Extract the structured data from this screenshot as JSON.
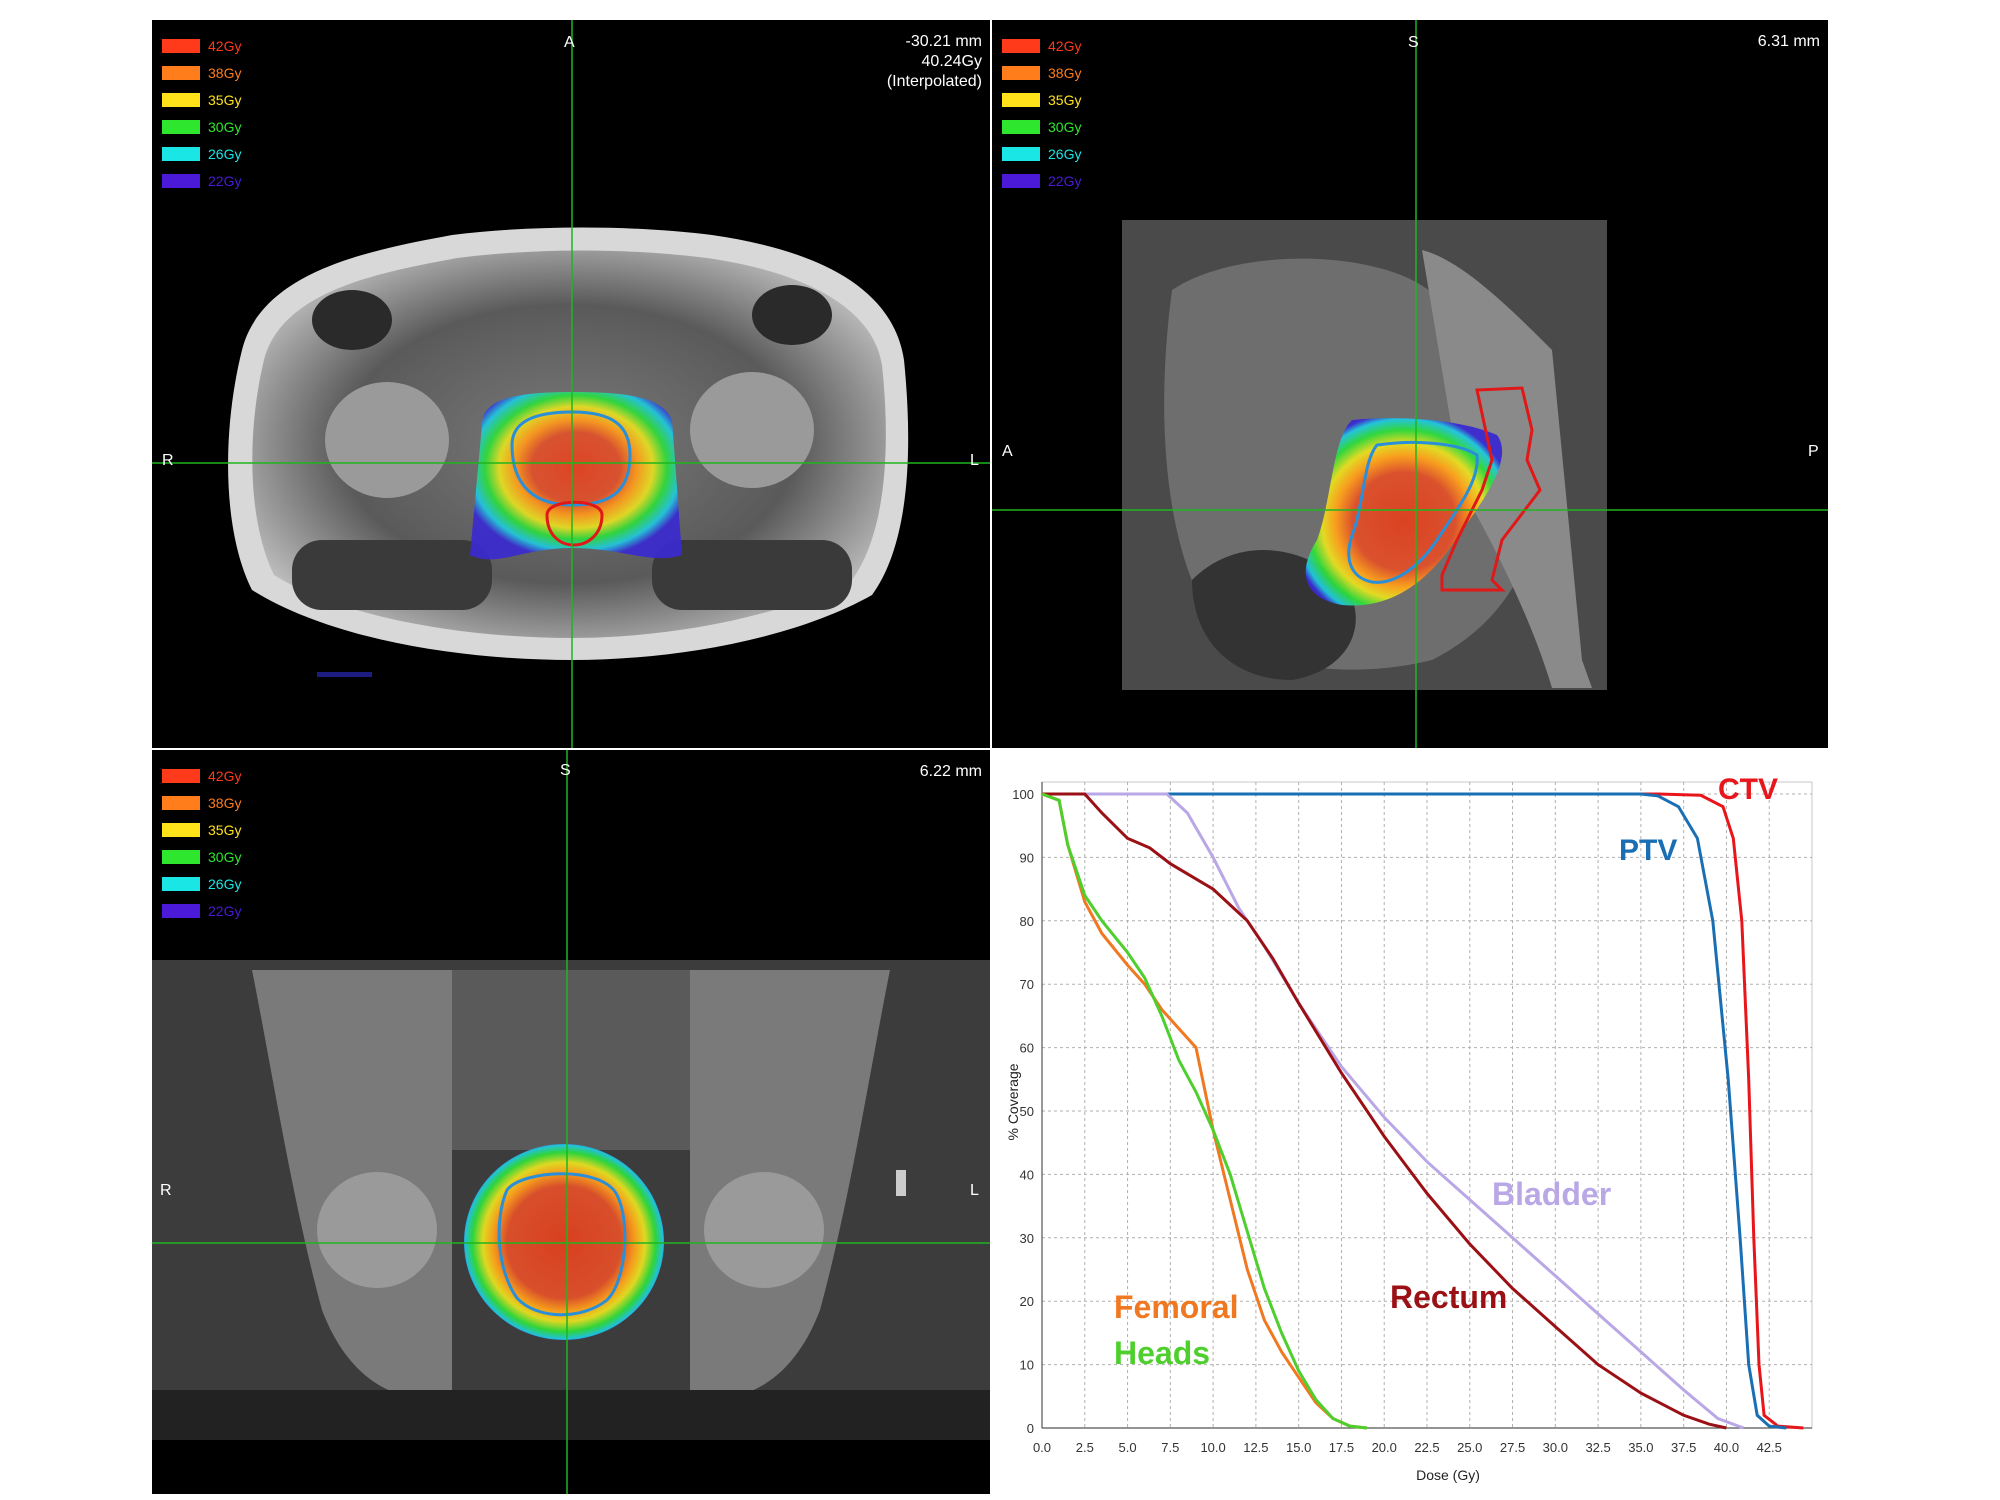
{
  "dose_legend": [
    {
      "label": "42Gy",
      "color": "#ff3a1a"
    },
    {
      "label": "38Gy",
      "color": "#ff7d1a"
    },
    {
      "label": "35Gy",
      "color": "#ffe21a"
    },
    {
      "label": "30Gy",
      "color": "#2ee62e"
    },
    {
      "label": "26Gy",
      "color": "#1ae6e6"
    },
    {
      "label": "22Gy",
      "color": "#4a1ad8"
    }
  ],
  "axial": {
    "orientation": {
      "top": "A",
      "left": "R",
      "right": "L"
    },
    "readout": {
      "position": "-30.21 mm",
      "dose": "40.24Gy",
      "note": "(Interpolated)"
    }
  },
  "sagittal": {
    "orientation": {
      "top": "S",
      "left": "A",
      "right": "P"
    },
    "readout": {
      "position": "6.31 mm"
    }
  },
  "coronal": {
    "orientation": {
      "top": "S",
      "left": "R",
      "right": "L"
    },
    "readout": {
      "position": "6.22 mm"
    }
  },
  "chart_data": {
    "type": "line",
    "xlabel": "Dose (Gy)",
    "ylabel": "% Coverage",
    "xlim": [
      0,
      45
    ],
    "ylim": [
      0,
      100
    ],
    "x_ticks": [
      "0.0",
      "2.5",
      "5.0",
      "7.5",
      "10.0",
      "12.5",
      "15.0",
      "17.5",
      "20.0",
      "22.5",
      "25.0",
      "27.5",
      "30.0",
      "32.5",
      "35.0",
      "37.5",
      "40.0",
      "42.5"
    ],
    "y_ticks": [
      "0",
      "10",
      "20",
      "30",
      "40",
      "50",
      "60",
      "70",
      "80",
      "90",
      "100"
    ],
    "grid": true,
    "series": [
      {
        "name": "CTV",
        "color": "#e8151b",
        "points": [
          [
            0,
            100
          ],
          [
            36,
            100
          ],
          [
            38.5,
            99.8
          ],
          [
            39.8,
            98
          ],
          [
            40.4,
            93
          ],
          [
            40.9,
            80
          ],
          [
            41.3,
            55
          ],
          [
            41.6,
            30
          ],
          [
            41.9,
            10
          ],
          [
            42.2,
            2
          ],
          [
            43,
            0.3
          ],
          [
            44.5,
            0
          ]
        ]
      },
      {
        "name": "PTV",
        "color": "#1a6fb4",
        "points": [
          [
            0,
            100
          ],
          [
            35,
            100
          ],
          [
            36,
            99.7
          ],
          [
            37.2,
            98
          ],
          [
            38.3,
            93
          ],
          [
            39.2,
            80
          ],
          [
            40.1,
            55
          ],
          [
            40.8,
            30
          ],
          [
            41.3,
            10
          ],
          [
            41.8,
            2
          ],
          [
            42.5,
            0.3
          ],
          [
            43.5,
            0
          ]
        ]
      },
      {
        "name": "Bladder",
        "color": "#b9a7e6",
        "points": [
          [
            0,
            100
          ],
          [
            7.3,
            100
          ],
          [
            8.5,
            97
          ],
          [
            10,
            90
          ],
          [
            11.5,
            82
          ],
          [
            13,
            76
          ],
          [
            15,
            67
          ],
          [
            17.5,
            57
          ],
          [
            20,
            49
          ],
          [
            22.5,
            42
          ],
          [
            25,
            36
          ],
          [
            27.5,
            30
          ],
          [
            30,
            24
          ],
          [
            32.5,
            18
          ],
          [
            35,
            12
          ],
          [
            37.5,
            6
          ],
          [
            39.5,
            1.5
          ],
          [
            41,
            0
          ]
        ]
      },
      {
        "name": "Rectum",
        "color": "#9b1014",
        "points": [
          [
            0,
            100
          ],
          [
            2.5,
            100
          ],
          [
            3.5,
            97
          ],
          [
            5,
            93
          ],
          [
            6.3,
            91.5
          ],
          [
            7.5,
            89
          ],
          [
            10,
            85
          ],
          [
            12,
            80
          ],
          [
            13.5,
            74
          ],
          [
            15,
            67
          ],
          [
            17.5,
            56
          ],
          [
            20,
            46
          ],
          [
            22.5,
            37
          ],
          [
            25,
            29
          ],
          [
            27.5,
            22
          ],
          [
            30,
            16
          ],
          [
            32.5,
            10
          ],
          [
            35,
            5.5
          ],
          [
            37.5,
            2
          ],
          [
            39,
            0.6
          ],
          [
            40,
            0
          ]
        ]
      },
      {
        "name": "Femoral",
        "color": "#f07820",
        "points": [
          [
            0,
            100
          ],
          [
            1,
            99
          ],
          [
            1.5,
            92
          ],
          [
            2.5,
            83
          ],
          [
            3.5,
            78
          ],
          [
            5,
            73
          ],
          [
            6,
            70
          ],
          [
            7,
            66
          ],
          [
            8,
            63
          ],
          [
            9,
            60
          ],
          [
            10,
            47
          ],
          [
            11,
            36
          ],
          [
            12,
            25
          ],
          [
            13,
            17
          ],
          [
            14,
            12
          ],
          [
            15,
            8
          ],
          [
            16,
            4
          ],
          [
            17,
            1.5
          ],
          [
            18,
            0.3
          ],
          [
            19,
            0
          ]
        ]
      },
      {
        "name": "Heads",
        "color": "#4fcf2e",
        "points": [
          [
            0,
            100
          ],
          [
            1,
            99
          ],
          [
            1.5,
            92
          ],
          [
            2.5,
            84
          ],
          [
            3.5,
            80
          ],
          [
            5,
            75
          ],
          [
            6,
            71
          ],
          [
            7,
            65
          ],
          [
            8,
            58
          ],
          [
            9,
            53
          ],
          [
            10,
            47
          ],
          [
            11,
            40
          ],
          [
            12,
            31
          ],
          [
            13,
            22
          ],
          [
            14,
            15
          ],
          [
            15,
            9
          ],
          [
            16,
            4.5
          ],
          [
            17,
            1.5
          ],
          [
            18,
            0.3
          ],
          [
            19,
            0
          ]
        ]
      }
    ],
    "labels": {
      "ctv": "CTV",
      "ptv": "PTV",
      "bladder": "Bladder",
      "rectum": "Rectum",
      "femoral": "Femoral",
      "heads": "Heads"
    }
  }
}
